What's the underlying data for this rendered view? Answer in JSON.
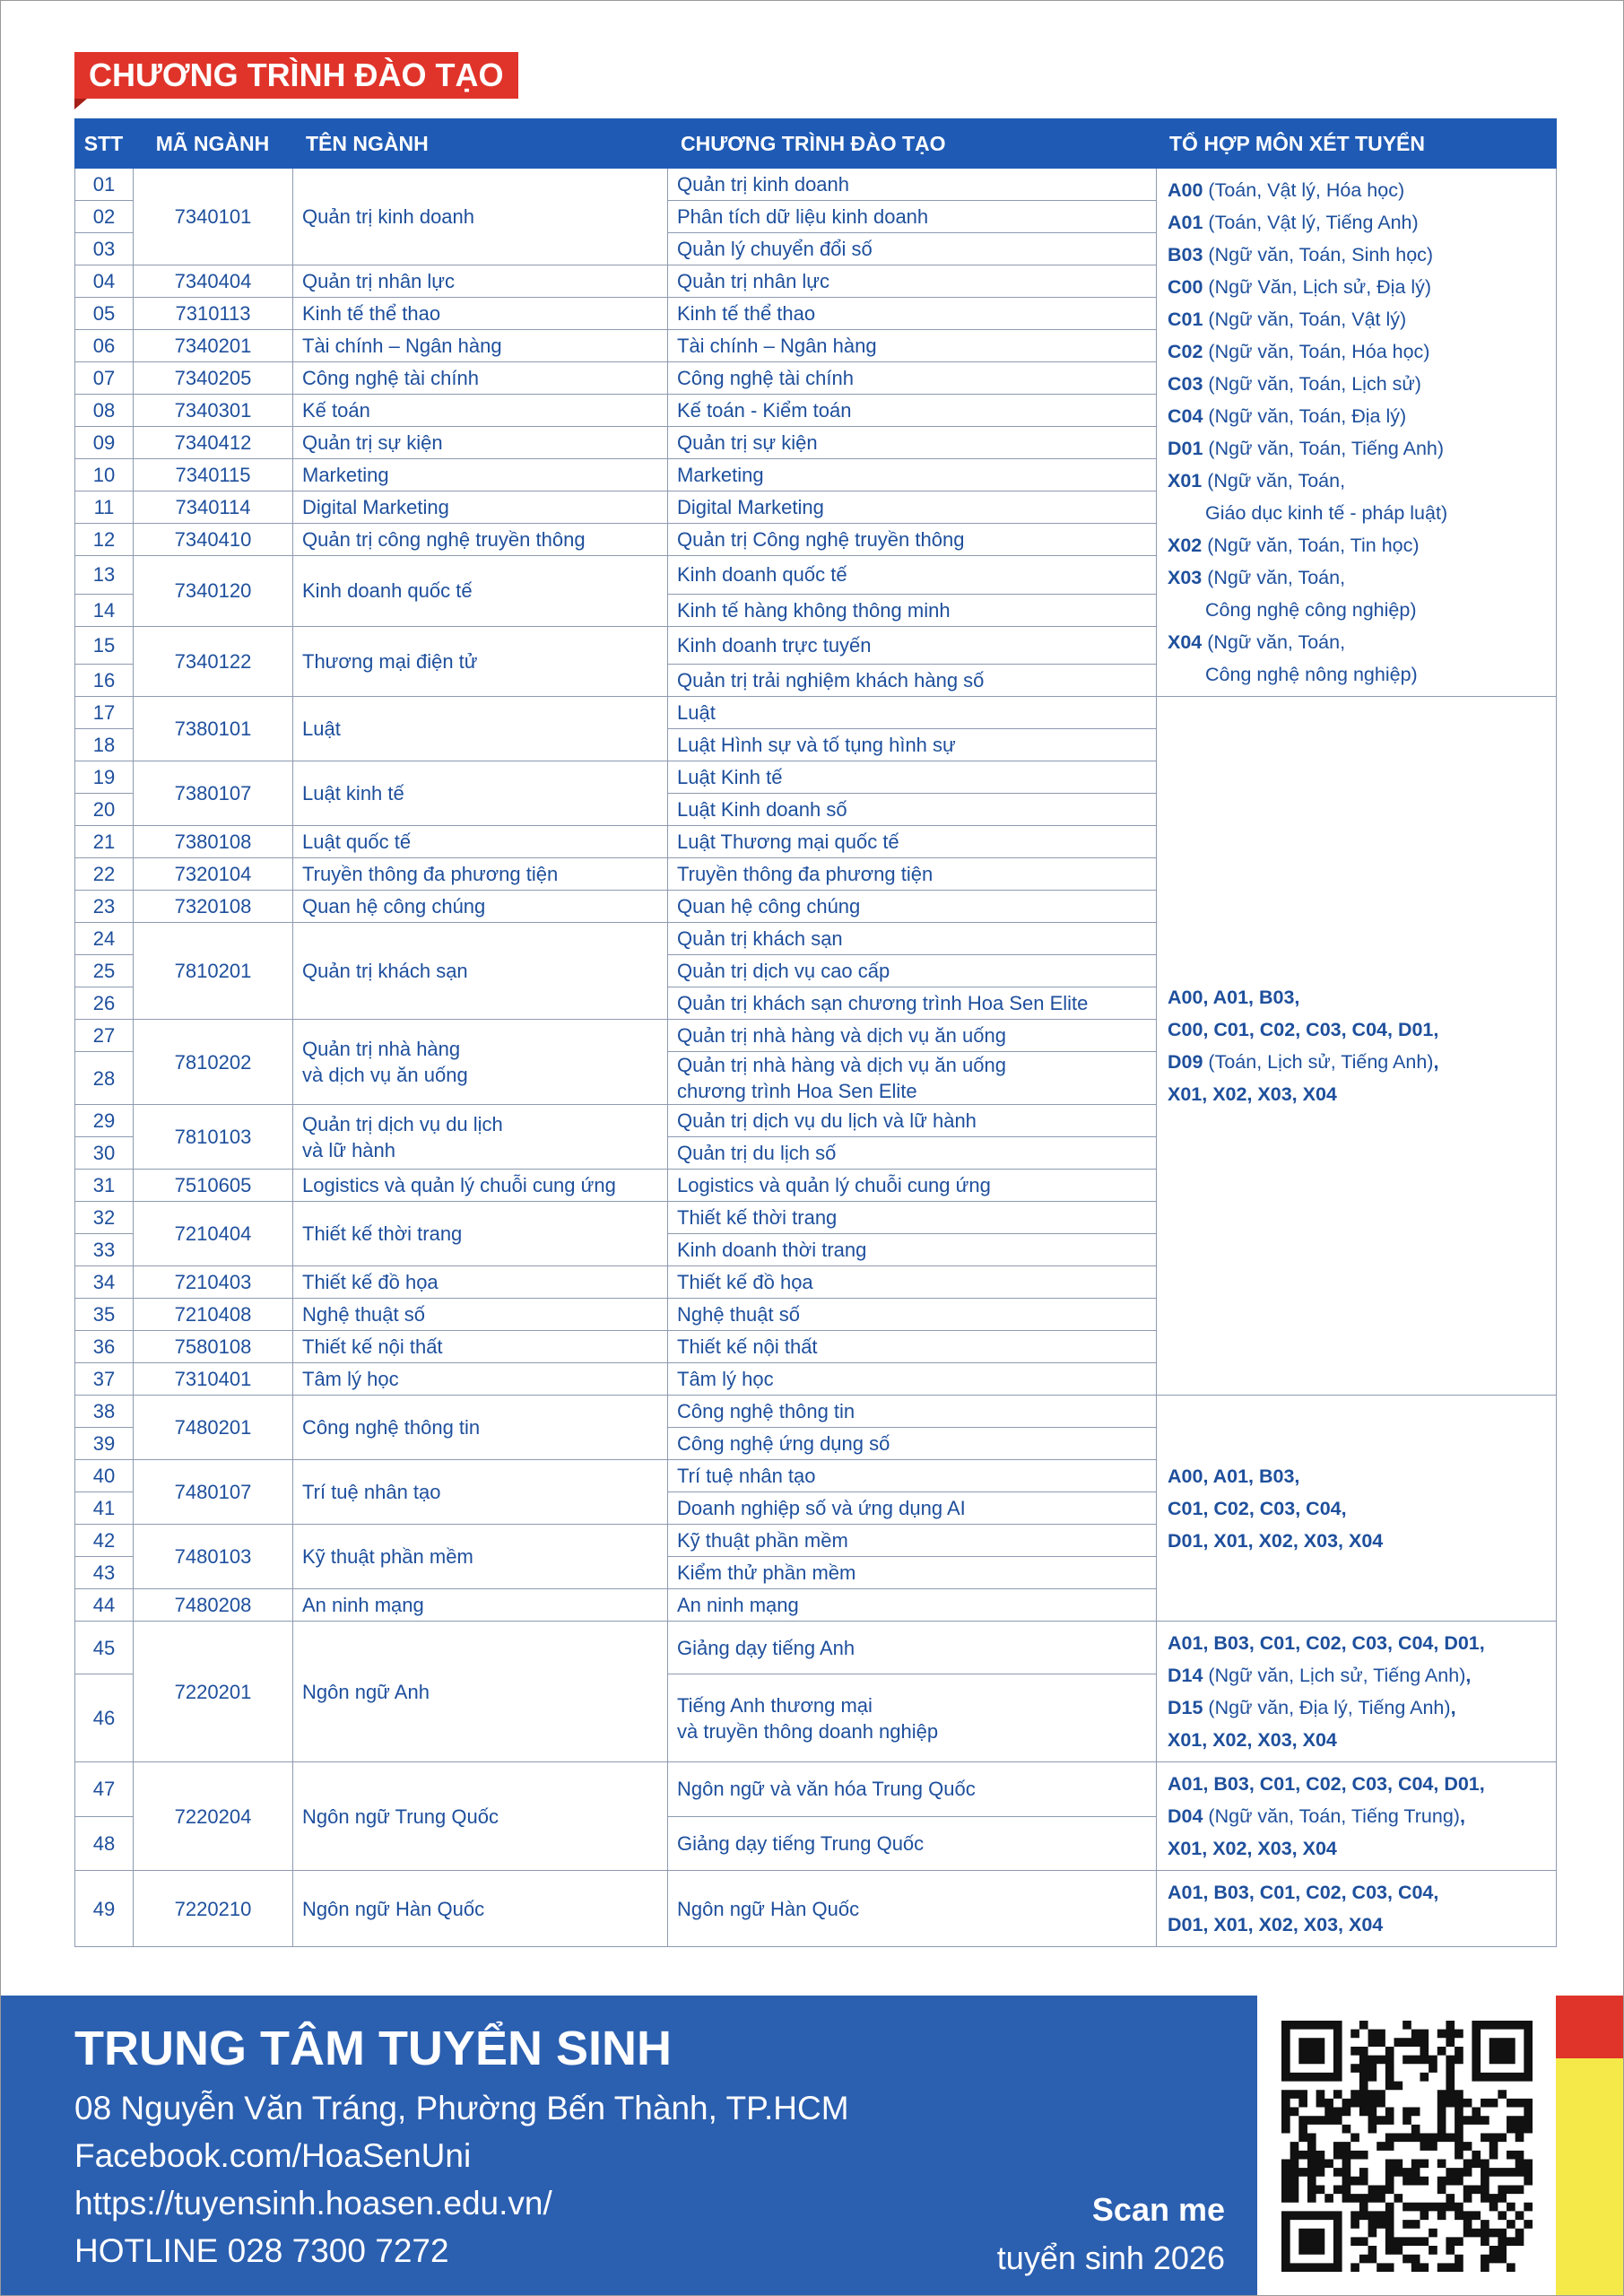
{
  "header": {
    "title": "CHƯƠNG TRÌNH ĐÀO TẠO"
  },
  "table": {
    "columns": [
      "STT",
      "MÃ NGÀNH",
      "TÊN NGÀNH",
      "CHƯƠNG TRÌNH ĐÀO TẠO",
      "TỔ HỢP MÔN XÉT TUYỂN"
    ],
    "blocks": [
      {
        "groups": [
          {
            "code": "7340101",
            "major": "Quản trị kinh doanh",
            "programs": [
              {
                "stt": "01",
                "name": "Quản trị kinh doanh"
              },
              {
                "stt": "02",
                "name": "Phân tích dữ liệu kinh doanh"
              },
              {
                "stt": "03",
                "name": "Quản lý chuyển đổi số"
              }
            ]
          },
          {
            "code": "7340404",
            "major": "Quản trị nhân lực",
            "programs": [
              {
                "stt": "04",
                "name": "Quản trị nhân lực"
              }
            ]
          },
          {
            "code": "7310113",
            "major": "Kinh tế thể thao",
            "programs": [
              {
                "stt": "05",
                "name": "Kinh tế thể thao"
              }
            ]
          },
          {
            "code": "7340201",
            "major": "Tài chính – Ngân hàng",
            "programs": [
              {
                "stt": "06",
                "name": "Tài chính – Ngân hàng"
              }
            ]
          },
          {
            "code": "7340205",
            "major": "Công nghệ tài chính",
            "programs": [
              {
                "stt": "07",
                "name": "Công nghệ tài chính"
              }
            ]
          },
          {
            "code": "7340301",
            "major": "Kế toán",
            "programs": [
              {
                "stt": "08",
                "name": "Kế toán - Kiểm toán"
              }
            ]
          },
          {
            "code": "7340412",
            "major": "Quản trị sự kiện",
            "programs": [
              {
                "stt": "09",
                "name": "Quản trị sự kiện"
              }
            ]
          },
          {
            "code": "7340115",
            "major": "Marketing",
            "programs": [
              {
                "stt": "10",
                "name": "Marketing"
              }
            ]
          },
          {
            "code": "7340114",
            "major": "Digital Marketing",
            "programs": [
              {
                "stt": "11",
                "name": "Digital Marketing"
              }
            ]
          },
          {
            "code": "7340410",
            "major": "Quản trị công nghệ truyền thông",
            "programs": [
              {
                "stt": "12",
                "name": "Quản trị Công nghệ truyền thông"
              }
            ]
          },
          {
            "code": "7340120",
            "major": "Kinh doanh quốc tế",
            "programs": [
              {
                "stt": "13",
                "name": "Kinh doanh quốc tế"
              },
              {
                "stt": "14",
                "name": "Kinh tế hàng không thông minh"
              }
            ]
          },
          {
            "code": "7340122",
            "major": "Thương mại điện tử",
            "programs": [
              {
                "stt": "15",
                "name": "Kinh doanh trực tuyến"
              },
              {
                "stt": "16",
                "name": "Quản trị trải nghiệm khách hàng số"
              }
            ]
          }
        ],
        "combo": [
          [
            {
              "b": "A00"
            },
            {
              "t": " (Toán, Vật lý, Hóa học)"
            }
          ],
          [
            {
              "b": "A01"
            },
            {
              "t": " (Toán, Vật lý, Tiếng Anh)"
            }
          ],
          [
            {
              "b": "B03"
            },
            {
              "t": " (Ngữ văn, Toán, Sinh học)"
            }
          ],
          [
            {
              "b": "C00"
            },
            {
              "t": " (Ngữ Văn, Lịch sử, Địa lý)"
            }
          ],
          [
            {
              "b": "C01"
            },
            {
              "t": " (Ngữ văn, Toán, Vật lý)"
            }
          ],
          [
            {
              "b": "C02"
            },
            {
              "t": " (Ngữ văn, Toán, Hóa học)"
            }
          ],
          [
            {
              "b": "C03"
            },
            {
              "t": " (Ngữ văn, Toán, Lịch sử)"
            }
          ],
          [
            {
              "b": "C04"
            },
            {
              "t": " (Ngữ văn, Toán, Địa lý)"
            }
          ],
          [
            {
              "b": "D01"
            },
            {
              "t": " (Ngữ văn, Toán, Tiếng Anh)"
            }
          ],
          [
            {
              "b": "X01"
            },
            {
              "t": " (Ngữ văn, Toán,"
            }
          ],
          [
            {
              "i": "Giáo dục kinh tế - pháp luật)"
            }
          ],
          [
            {
              "b": "X02"
            },
            {
              "t": " (Ngữ văn, Toán, Tin học)"
            }
          ],
          [
            {
              "b": "X03"
            },
            {
              "t": " (Ngữ văn, Toán,"
            }
          ],
          [
            {
              "i": "Công nghệ công nghiệp)"
            }
          ],
          [
            {
              "b": "X04"
            },
            {
              "t": " (Ngữ văn, Toán,"
            }
          ],
          [
            {
              "i": "Công nghệ nông nghiệp)"
            }
          ]
        ]
      },
      {
        "groups": [
          {
            "code": "7380101",
            "major": "Luật",
            "programs": [
              {
                "stt": "17",
                "name": "Luật"
              },
              {
                "stt": "18",
                "name": "Luật Hình sự và tố tụng hình sự"
              }
            ]
          },
          {
            "code": "7380107",
            "major": "Luật kinh tế",
            "programs": [
              {
                "stt": "19",
                "name": "Luật Kinh tế"
              },
              {
                "stt": "20",
                "name": "Luật Kinh doanh số"
              }
            ]
          },
          {
            "code": "7380108",
            "major": "Luật quốc tế",
            "programs": [
              {
                "stt": "21",
                "name": "Luật Thương mại quốc tế"
              }
            ]
          },
          {
            "code": "7320104",
            "major": "Truyền thông đa phương tiện",
            "programs": [
              {
                "stt": "22",
                "name": "Truyền thông đa phương tiện"
              }
            ]
          },
          {
            "code": "7320108",
            "major": "Quan hệ công chúng",
            "programs": [
              {
                "stt": "23",
                "name": "Quan hệ công chúng"
              }
            ]
          },
          {
            "code": "7810201",
            "major": "Quản trị khách sạn",
            "programs": [
              {
                "stt": "24",
                "name": "Quản trị khách sạn"
              },
              {
                "stt": "25",
                "name": "Quản trị dịch vụ cao cấp"
              },
              {
                "stt": "26",
                "name": "Quản trị khách sạn chương trình Hoa Sen Elite"
              }
            ]
          },
          {
            "code": "7810202",
            "major": "Quản trị nhà hàng\nvà dịch vụ ăn uống",
            "programs": [
              {
                "stt": "27",
                "name": "Quản trị nhà hàng và dịch vụ ăn uống"
              },
              {
                "stt": "28",
                "name": "Quản trị nhà hàng và dịch vụ ăn uống\nchương trình Hoa Sen Elite"
              }
            ]
          },
          {
            "code": "7810103",
            "major": "Quản trị dịch vụ du lịch\nvà lữ hành",
            "programs": [
              {
                "stt": "29",
                "name": "Quản trị dịch vụ du lịch và lữ hành"
              },
              {
                "stt": "30",
                "name": "Quản trị du lịch số"
              }
            ]
          },
          {
            "code": "7510605",
            "major": "Logistics và quản lý chuỗi cung ứng",
            "programs": [
              {
                "stt": "31",
                "name": "Logistics và quản lý chuỗi cung ứng"
              }
            ]
          },
          {
            "code": "7210404",
            "major": "Thiết kế thời trang",
            "programs": [
              {
                "stt": "32",
                "name": "Thiết kế thời trang"
              },
              {
                "stt": "33",
                "name": "Kinh doanh thời trang"
              }
            ]
          },
          {
            "code": "7210403",
            "major": "Thiết kế đồ họa",
            "programs": [
              {
                "stt": "34",
                "name": "Thiết kế đồ họa"
              }
            ]
          },
          {
            "code": "7210408",
            "major": "Nghệ thuật số",
            "programs": [
              {
                "stt": "35",
                "name": "Nghệ thuật số"
              }
            ]
          },
          {
            "code": "7580108",
            "major": "Thiết kế nội thất",
            "programs": [
              {
                "stt": "36",
                "name": "Thiết kế nội thất"
              }
            ]
          },
          {
            "code": "7310401",
            "major": "Tâm lý học",
            "programs": [
              {
                "stt": "37",
                "name": "Tâm lý học"
              }
            ]
          }
        ],
        "combo": [
          [
            {
              "b": "A00, A01, B03,"
            }
          ],
          [
            {
              "b": "C00, C01, C02, C03, C04, D01,"
            }
          ],
          [
            {
              "b": "D09"
            },
            {
              "t": " (Toán, Lịch sử, Tiếng Anh)"
            },
            {
              "b": ","
            }
          ],
          [
            {
              "b": "X01, X02, X03, X04"
            }
          ]
        ]
      },
      {
        "groups": [
          {
            "code": "7480201",
            "major": "Công nghệ thông tin",
            "programs": [
              {
                "stt": "38",
                "name": "Công nghệ thông tin"
              },
              {
                "stt": "39",
                "name": "Công nghệ ứng dụng số"
              }
            ]
          },
          {
            "code": "7480107",
            "major": "Trí tuệ nhân tạo",
            "programs": [
              {
                "stt": "40",
                "name": "Trí tuệ nhân tạo"
              },
              {
                "stt": "41",
                "name": "Doanh nghiệp số và ứng dụng AI"
              }
            ]
          },
          {
            "code": "7480103",
            "major": "Kỹ thuật phần mềm",
            "programs": [
              {
                "stt": "42",
                "name": "Kỹ thuật phần mềm"
              },
              {
                "stt": "43",
                "name": "Kiểm thử phần mềm"
              }
            ]
          },
          {
            "code": "7480208",
            "major": "An ninh mạng",
            "programs": [
              {
                "stt": "44",
                "name": "An ninh mạng"
              }
            ]
          }
        ],
        "combo": [
          [
            {
              "b": "A00, A01, B03,"
            }
          ],
          [
            {
              "b": "C01, C02, C03, C04,"
            }
          ],
          [
            {
              "b": "D01, X01, X02, X03, X04"
            }
          ]
        ]
      },
      {
        "groups": [
          {
            "code": "7220201",
            "major": "Ngôn ngữ Anh",
            "programs": [
              {
                "stt": "45",
                "name": "Giảng dạy tiếng Anh"
              },
              {
                "stt": "46",
                "name": "Tiếng Anh thương mại\nvà truyền thông doanh nghiệp"
              }
            ]
          }
        ],
        "combo": [
          [
            {
              "b": "A01, B03, C01, C02, C03, C04, D01,"
            }
          ],
          [
            {
              "b": "D14"
            },
            {
              "t": " (Ngữ văn, Lịch sử, Tiếng Anh)"
            },
            {
              "b": ","
            }
          ],
          [
            {
              "b": "D15"
            },
            {
              "t": " (Ngữ văn, Địa lý, Tiếng Anh)"
            },
            {
              "b": ","
            }
          ],
          [
            {
              "b": "X01, X02, X03, X04"
            }
          ]
        ]
      },
      {
        "groups": [
          {
            "code": "7220204",
            "major": "Ngôn ngữ Trung Quốc",
            "programs": [
              {
                "stt": "47",
                "name": "Ngôn ngữ và văn hóa Trung Quốc"
              },
              {
                "stt": "48",
                "name": "Giảng dạy tiếng Trung Quốc"
              }
            ]
          }
        ],
        "combo": [
          [
            {
              "b": "A01, B03, C01, C02, C03, C04, D01,"
            }
          ],
          [
            {
              "b": "D04"
            },
            {
              "t": " (Ngữ văn, Toán, Tiếng Trung)"
            },
            {
              "b": ","
            }
          ],
          [
            {
              "b": "X01, X02, X03, X04"
            }
          ]
        ]
      },
      {
        "groups": [
          {
            "code": "7220210",
            "major": "Ngôn ngữ Hàn Quốc",
            "programs": [
              {
                "stt": "49",
                "name": "Ngôn ngữ Hàn Quốc"
              }
            ]
          }
        ],
        "combo": [
          [
            {
              "b": "A01, B03, C01, C02, C03, C04,"
            }
          ],
          [
            {
              "b": "D01, X01, X02, X03, X04"
            }
          ]
        ]
      }
    ]
  },
  "footer": {
    "title": "TRUNG TÂM TUYỂN SINH",
    "lines": [
      "08 Nguyễn Văn Tráng, Phường Bến Thành, TP.HCM",
      "Facebook.com/HoaSenUni",
      "https://tuyensinh.hoasen.edu.vn/",
      "HOTLINE  028 7300 7272"
    ],
    "scan": "Scan me",
    "year": "tuyển sinh 2026"
  }
}
